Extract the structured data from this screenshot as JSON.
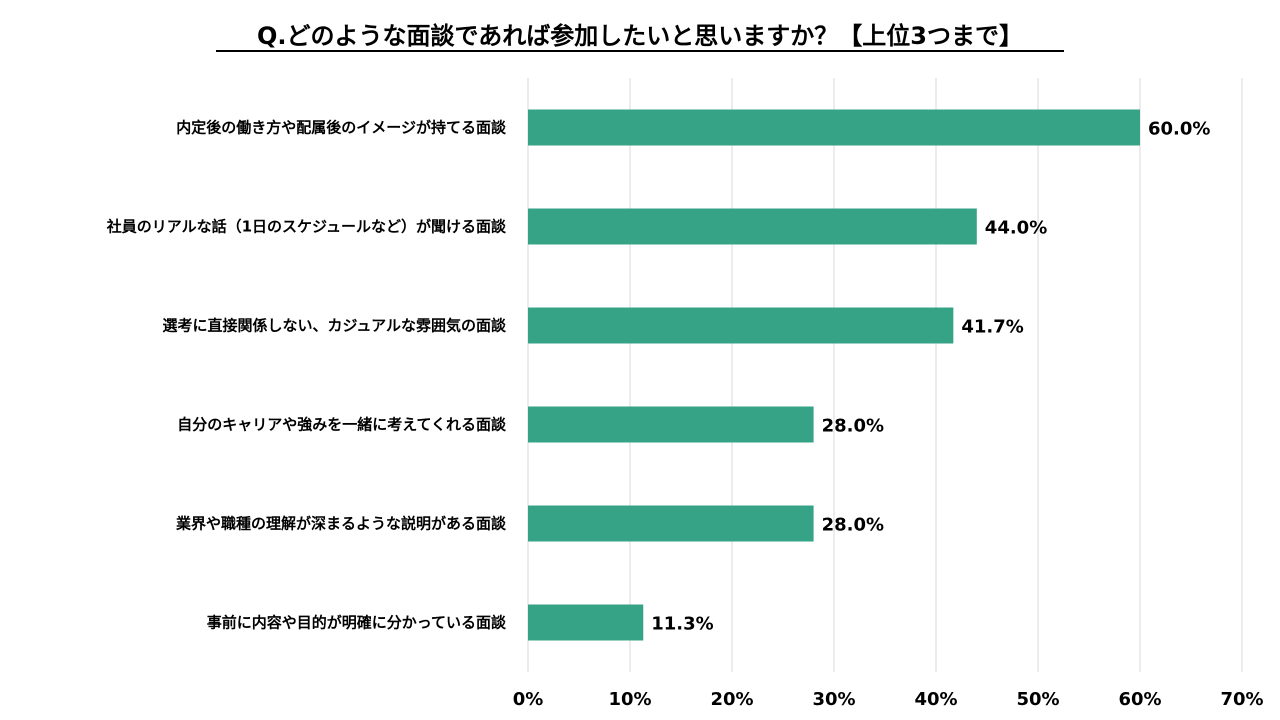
{
  "chart_data": {
    "type": "bar",
    "orientation": "horizontal",
    "title": "Q.どのような面談であれば参加したいと思いますか？【上位3つまで】",
    "categories": [
      "内定後の働き方や配属後のイメージが持てる面談",
      "社員のリアルな話（1日のスケジュールなど）が聞ける面談",
      "選考に直接関係しない、カジュアルな雰囲気の面談",
      "自分のキャリアや強みを一緒に考えてくれる面談",
      "業界や職種の理解が深まるような説明がある面談",
      "事前に内容や目的が明確に分かっている面談"
    ],
    "values": [
      60.0,
      44.0,
      41.7,
      28.0,
      28.0,
      11.3
    ],
    "value_labels": [
      "60.0%",
      "44.0%",
      "41.7%",
      "28.0%",
      "28.0%",
      "11.3%"
    ],
    "xlim": [
      0,
      70
    ],
    "x_ticks": [
      "0%",
      "10%",
      "20%",
      "30%",
      "40%",
      "50%",
      "60%",
      "70%"
    ],
    "xlabel": "",
    "ylabel": "",
    "grid": true,
    "legend": "none",
    "bar_color": "#36A386",
    "grid_color": "#D9D9D9"
  }
}
